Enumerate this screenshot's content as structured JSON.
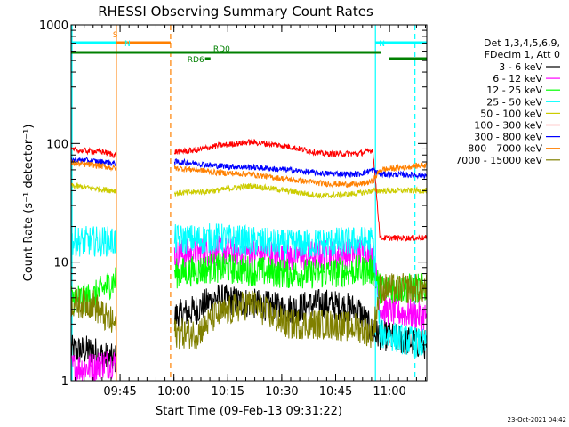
{
  "chart_data": {
    "type": "line",
    "title": "RHESSI Observing Summary Count Rates",
    "xlabel": "Start Time (09-Feb-13 09:31:22)",
    "ylabel": "Count Rate (s⁻¹ detector⁻¹)",
    "yscale": "log",
    "ylim": [
      1,
      1000
    ],
    "xlim_minutes_after_start": [
      0,
      99
    ],
    "x_start_time": "09:31:22",
    "x_ticks": [
      "09:45",
      "10:00",
      "10:15",
      "10:30",
      "10:45",
      "11:00"
    ],
    "x_tick_minutes": [
      13.63,
      28.63,
      43.63,
      58.63,
      73.63,
      88.63
    ],
    "y_ticks": [
      1,
      10,
      100,
      1000
    ],
    "y_tick_labels": [
      "1",
      "10",
      "100",
      "1000"
    ],
    "legend_header": [
      "Det 1,3,4,5,6,9,",
      "FDecim 1, Att 0"
    ],
    "legend_placement": "right",
    "timestamp": "23-Oct-2021 04:42",
    "gaps_minutes": [
      [
        12.5,
        28.8
      ]
    ],
    "series": [
      {
        "name": "3 - 6 keV",
        "color": "#000000",
        "points": [
          [
            0,
            1.8
          ],
          [
            6,
            1.8
          ],
          [
            9,
            1.6
          ],
          [
            12,
            1.5
          ],
          [
            28.8,
            3.5
          ],
          [
            35,
            4.0
          ],
          [
            40,
            5.0
          ],
          [
            50,
            4.5
          ],
          [
            60,
            4.0
          ],
          [
            70,
            4.5
          ],
          [
            80,
            4.0
          ],
          [
            84,
            2.5
          ],
          [
            99,
            2.0
          ]
        ]
      },
      {
        "name": "6 - 12 keV",
        "color": "#ff00ff",
        "points": [
          [
            0,
            1.3
          ],
          [
            6,
            1.3
          ],
          [
            9,
            1.4
          ],
          [
            12,
            1.4
          ],
          [
            28.8,
            11.5
          ],
          [
            35,
            12.0
          ],
          [
            40,
            12.5
          ],
          [
            50,
            12.0
          ],
          [
            60,
            11.0
          ],
          [
            70,
            11.5
          ],
          [
            80,
            12.0
          ],
          [
            84,
            12.0
          ],
          [
            86,
            4.0
          ],
          [
            99,
            3.5
          ]
        ]
      },
      {
        "name": "12 - 25 keV",
        "color": "#00ff00",
        "points": [
          [
            0,
            5.0
          ],
          [
            6,
            5.0
          ],
          [
            9,
            6.0
          ],
          [
            12,
            7.0
          ],
          [
            28.8,
            8.0
          ],
          [
            35,
            8.5
          ],
          [
            40,
            9.0
          ],
          [
            50,
            8.5
          ],
          [
            60,
            8.0
          ],
          [
            70,
            8.0
          ],
          [
            80,
            8.5
          ],
          [
            84,
            8.5
          ],
          [
            86,
            6.0
          ],
          [
            99,
            6.0
          ]
        ]
      },
      {
        "name": "25 - 50 keV",
        "color": "#00ffff",
        "points": [
          [
            0,
            15.0
          ],
          [
            6,
            15.0
          ],
          [
            9,
            15.0
          ],
          [
            12,
            15.0
          ],
          [
            28.8,
            15.5
          ],
          [
            35,
            15.5
          ],
          [
            40,
            16.0
          ],
          [
            50,
            15.0
          ],
          [
            60,
            14.0
          ],
          [
            70,
            14.5
          ],
          [
            80,
            15.0
          ],
          [
            84,
            15.0
          ],
          [
            86,
            2.5
          ],
          [
            99,
            2.0
          ]
        ]
      },
      {
        "name": "50 - 100 keV",
        "color": "#cccc00",
        "points": [
          [
            0,
            44
          ],
          [
            6,
            42
          ],
          [
            9,
            41
          ],
          [
            12,
            40
          ],
          [
            28.8,
            38
          ],
          [
            35,
            39
          ],
          [
            40,
            40
          ],
          [
            50,
            44
          ],
          [
            60,
            40
          ],
          [
            70,
            36
          ],
          [
            80,
            38
          ],
          [
            84,
            40
          ],
          [
            86,
            40
          ],
          [
            99,
            40
          ]
        ]
      },
      {
        "name": "100 - 300 keV",
        "color": "#ff0000",
        "points": [
          [
            0,
            88
          ],
          [
            6,
            86
          ],
          [
            9,
            85
          ],
          [
            12,
            80
          ],
          [
            28.8,
            85
          ],
          [
            35,
            88
          ],
          [
            40,
            95
          ],
          [
            50,
            103
          ],
          [
            60,
            95
          ],
          [
            70,
            82
          ],
          [
            80,
            82
          ],
          [
            84,
            88
          ],
          [
            86,
            16
          ],
          [
            99,
            16
          ]
        ]
      },
      {
        "name": "300 - 800 keV",
        "color": "#0000ff",
        "points": [
          [
            0,
            73
          ],
          [
            6,
            71
          ],
          [
            9,
            70
          ],
          [
            12,
            68
          ],
          [
            28.8,
            70
          ],
          [
            35,
            68
          ],
          [
            40,
            65
          ],
          [
            50,
            63
          ],
          [
            60,
            60
          ],
          [
            70,
            56
          ],
          [
            80,
            55
          ],
          [
            84,
            60
          ],
          [
            86,
            55
          ],
          [
            99,
            54
          ]
        ]
      },
      {
        "name": "800 - 7000 keV",
        "color": "#ff8000",
        "points": [
          [
            0,
            68
          ],
          [
            6,
            66
          ],
          [
            9,
            64
          ],
          [
            12,
            62
          ],
          [
            28.8,
            62
          ],
          [
            35,
            60
          ],
          [
            40,
            57
          ],
          [
            50,
            55
          ],
          [
            60,
            50
          ],
          [
            70,
            46
          ],
          [
            80,
            45
          ],
          [
            84,
            48
          ],
          [
            86,
            60
          ],
          [
            99,
            66
          ]
        ]
      },
      {
        "name": "7000 - 15000 keV",
        "color": "#808000",
        "points": [
          [
            0,
            4.5
          ],
          [
            6,
            4.5
          ],
          [
            9,
            3.5
          ],
          [
            12,
            3.0
          ],
          [
            28.8,
            2.5
          ],
          [
            35,
            2.5
          ],
          [
            40,
            3.5
          ],
          [
            50,
            4.5
          ],
          [
            60,
            3.0
          ],
          [
            70,
            3.0
          ],
          [
            80,
            2.8
          ],
          [
            84,
            2.5
          ],
          [
            86,
            6.0
          ],
          [
            99,
            6.0
          ]
        ]
      }
    ],
    "flags": [
      {
        "label": "S",
        "color": "#ff8000",
        "start": 12.6,
        "end": 27.7,
        "level": "top"
      },
      {
        "label": "N",
        "color": "#00ffff",
        "start": 0,
        "end": 12.6,
        "level": "top"
      },
      {
        "label": "N",
        "color": "#00ffff",
        "start": 84.7,
        "end": 99,
        "level": "top"
      },
      {
        "label": "RD0",
        "color": "#008000",
        "start": 0,
        "end": 86.3,
        "level": "middle"
      },
      {
        "label": "RD6",
        "color": "#008000",
        "start": 37.3,
        "end": 38.8,
        "level": "low"
      },
      {
        "label": "",
        "color": "#008000",
        "start": 88.6,
        "end": 99,
        "level": "low"
      }
    ],
    "vertical_markers": [
      {
        "minute": 0,
        "color": "#00ffff",
        "style": "solid"
      },
      {
        "minute": 12.6,
        "color": "#ff8000",
        "style": "solid"
      },
      {
        "minute": 27.7,
        "color": "#ff8000",
        "style": "dashed"
      },
      {
        "minute": 84.7,
        "color": "#00ffff",
        "style": "solid"
      },
      {
        "minute": 95.7,
        "color": "#00ffff",
        "style": "dashed"
      }
    ]
  }
}
